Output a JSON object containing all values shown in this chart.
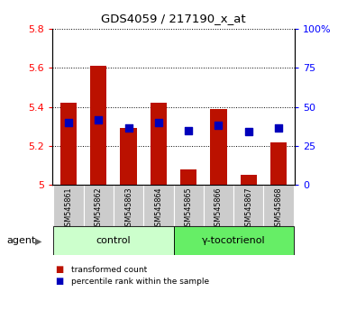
{
  "title": "GDS4059 / 217190_x_at",
  "samples": [
    "GSM545861",
    "GSM545862",
    "GSM545863",
    "GSM545864",
    "GSM545865",
    "GSM545866",
    "GSM545867",
    "GSM545868"
  ],
  "red_values": [
    5.42,
    5.61,
    5.29,
    5.42,
    5.08,
    5.39,
    5.05,
    5.22
  ],
  "blue_values": [
    5.32,
    5.335,
    5.29,
    5.32,
    5.28,
    5.305,
    5.275,
    5.29
  ],
  "ylim_left": [
    5.0,
    5.8
  ],
  "ylim_right": [
    0,
    100
  ],
  "yticks_left": [
    5.0,
    5.2,
    5.4,
    5.6,
    5.8
  ],
  "ytick_labels_left": [
    "5",
    "5.2",
    "5.4",
    "5.6",
    "5.8"
  ],
  "yticks_right": [
    0,
    25,
    50,
    75,
    100
  ],
  "ytick_labels_right": [
    "0",
    "25",
    "50",
    "75",
    "100%"
  ],
  "groups": [
    {
      "label": "control",
      "indices": [
        0,
        1,
        2,
        3
      ],
      "color": "#ccffcc"
    },
    {
      "label": "γ-tocotrienol",
      "indices": [
        4,
        5,
        6,
        7
      ],
      "color": "#66ee66"
    }
  ],
  "agent_label": "agent",
  "bar_color": "#bb1100",
  "dot_color": "#0000bb",
  "bar_bottom": 5.0,
  "bar_width": 0.55,
  "dot_size": 35,
  "legend_items": [
    {
      "color": "#bb1100",
      "label": "transformed count"
    },
    {
      "color": "#0000bb",
      "label": "percentile rank within the sample"
    }
  ]
}
